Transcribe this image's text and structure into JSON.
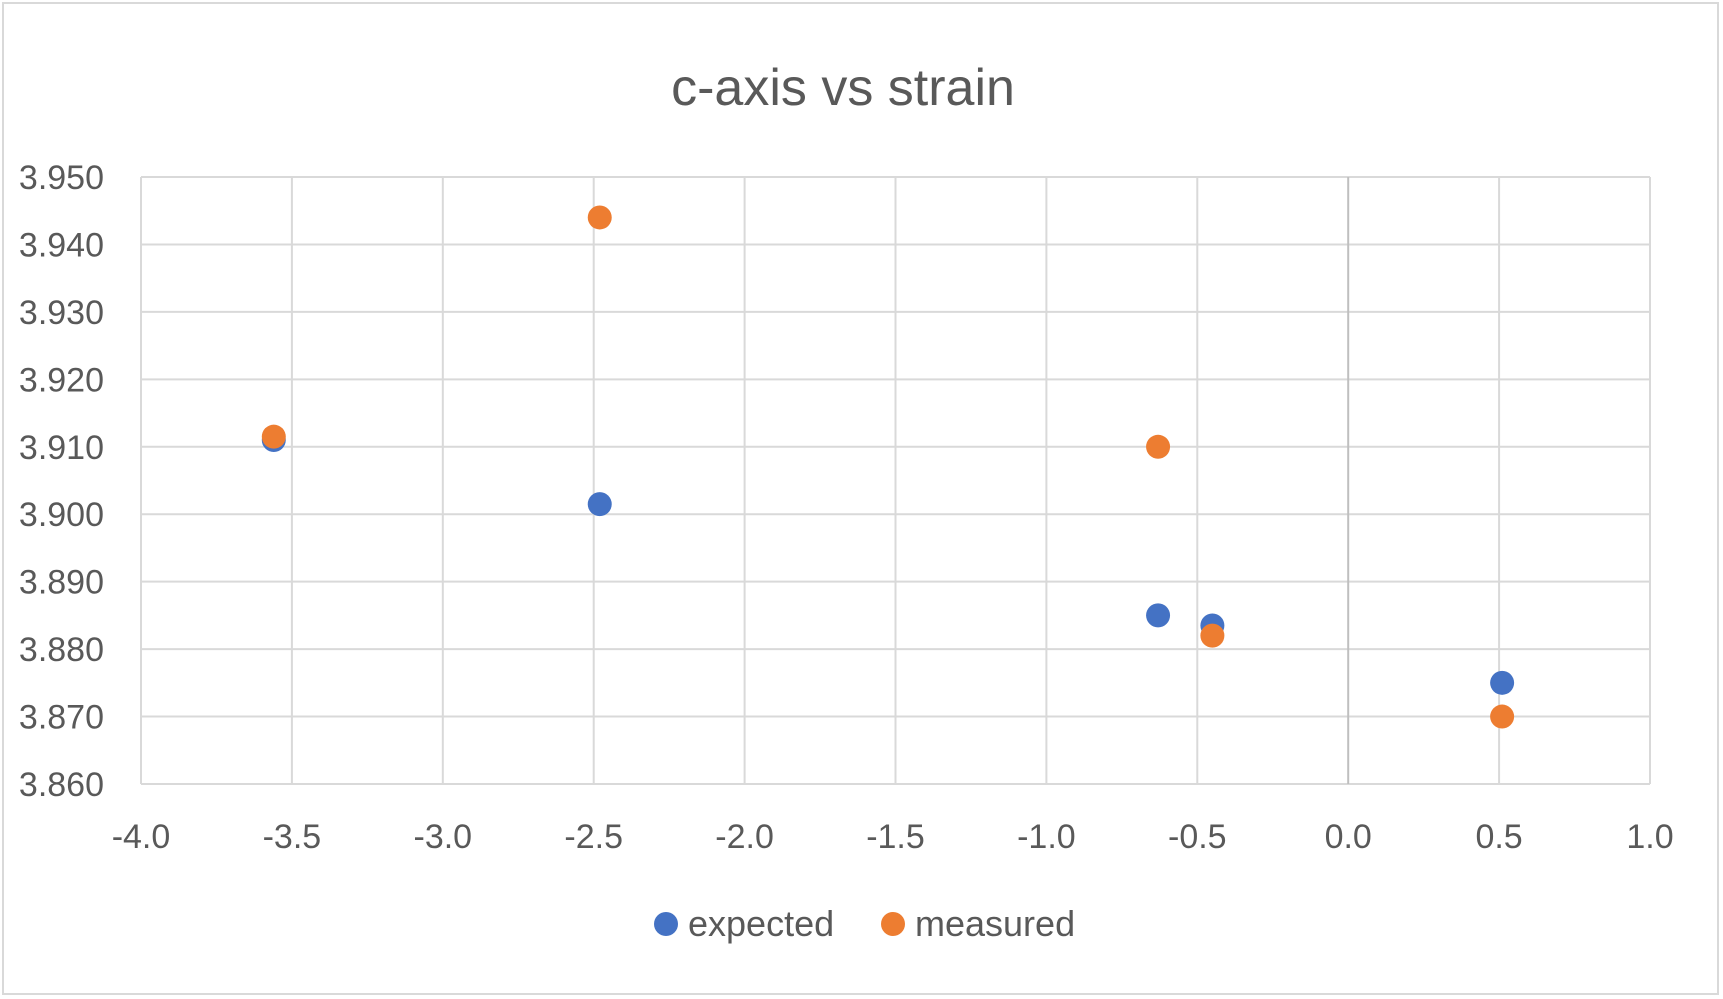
{
  "chart_data": {
    "type": "scatter",
    "title": "c-axis vs strain",
    "xlabel": "",
    "ylabel": "",
    "xlim": [
      -4.0,
      1.0
    ],
    "ylim": [
      3.86,
      3.95
    ],
    "x_ticks": [
      "-4.0",
      "-3.5",
      "-3.0",
      "-2.5",
      "-2.0",
      "-1.5",
      "-1.0",
      "-0.5",
      "0.0",
      "0.5",
      "1.0"
    ],
    "y_ticks": [
      "3.860",
      "3.870",
      "3.880",
      "3.890",
      "3.900",
      "3.910",
      "3.920",
      "3.930",
      "3.940",
      "3.950"
    ],
    "grid": true,
    "legend_position": "bottom",
    "series": [
      {
        "name": "expected",
        "color": "#4472C4",
        "points": [
          {
            "x": -3.56,
            "y": 3.911
          },
          {
            "x": -2.48,
            "y": 3.9015
          },
          {
            "x": -0.63,
            "y": 3.885
          },
          {
            "x": -0.45,
            "y": 3.8835
          },
          {
            "x": 0.51,
            "y": 3.875
          }
        ]
      },
      {
        "name": "measured",
        "color": "#ED7D31",
        "points": [
          {
            "x": -3.56,
            "y": 3.9115
          },
          {
            "x": -2.48,
            "y": 3.944
          },
          {
            "x": -0.63,
            "y": 3.91
          },
          {
            "x": -0.45,
            "y": 3.882
          },
          {
            "x": 0.51,
            "y": 3.87
          }
        ]
      }
    ]
  }
}
